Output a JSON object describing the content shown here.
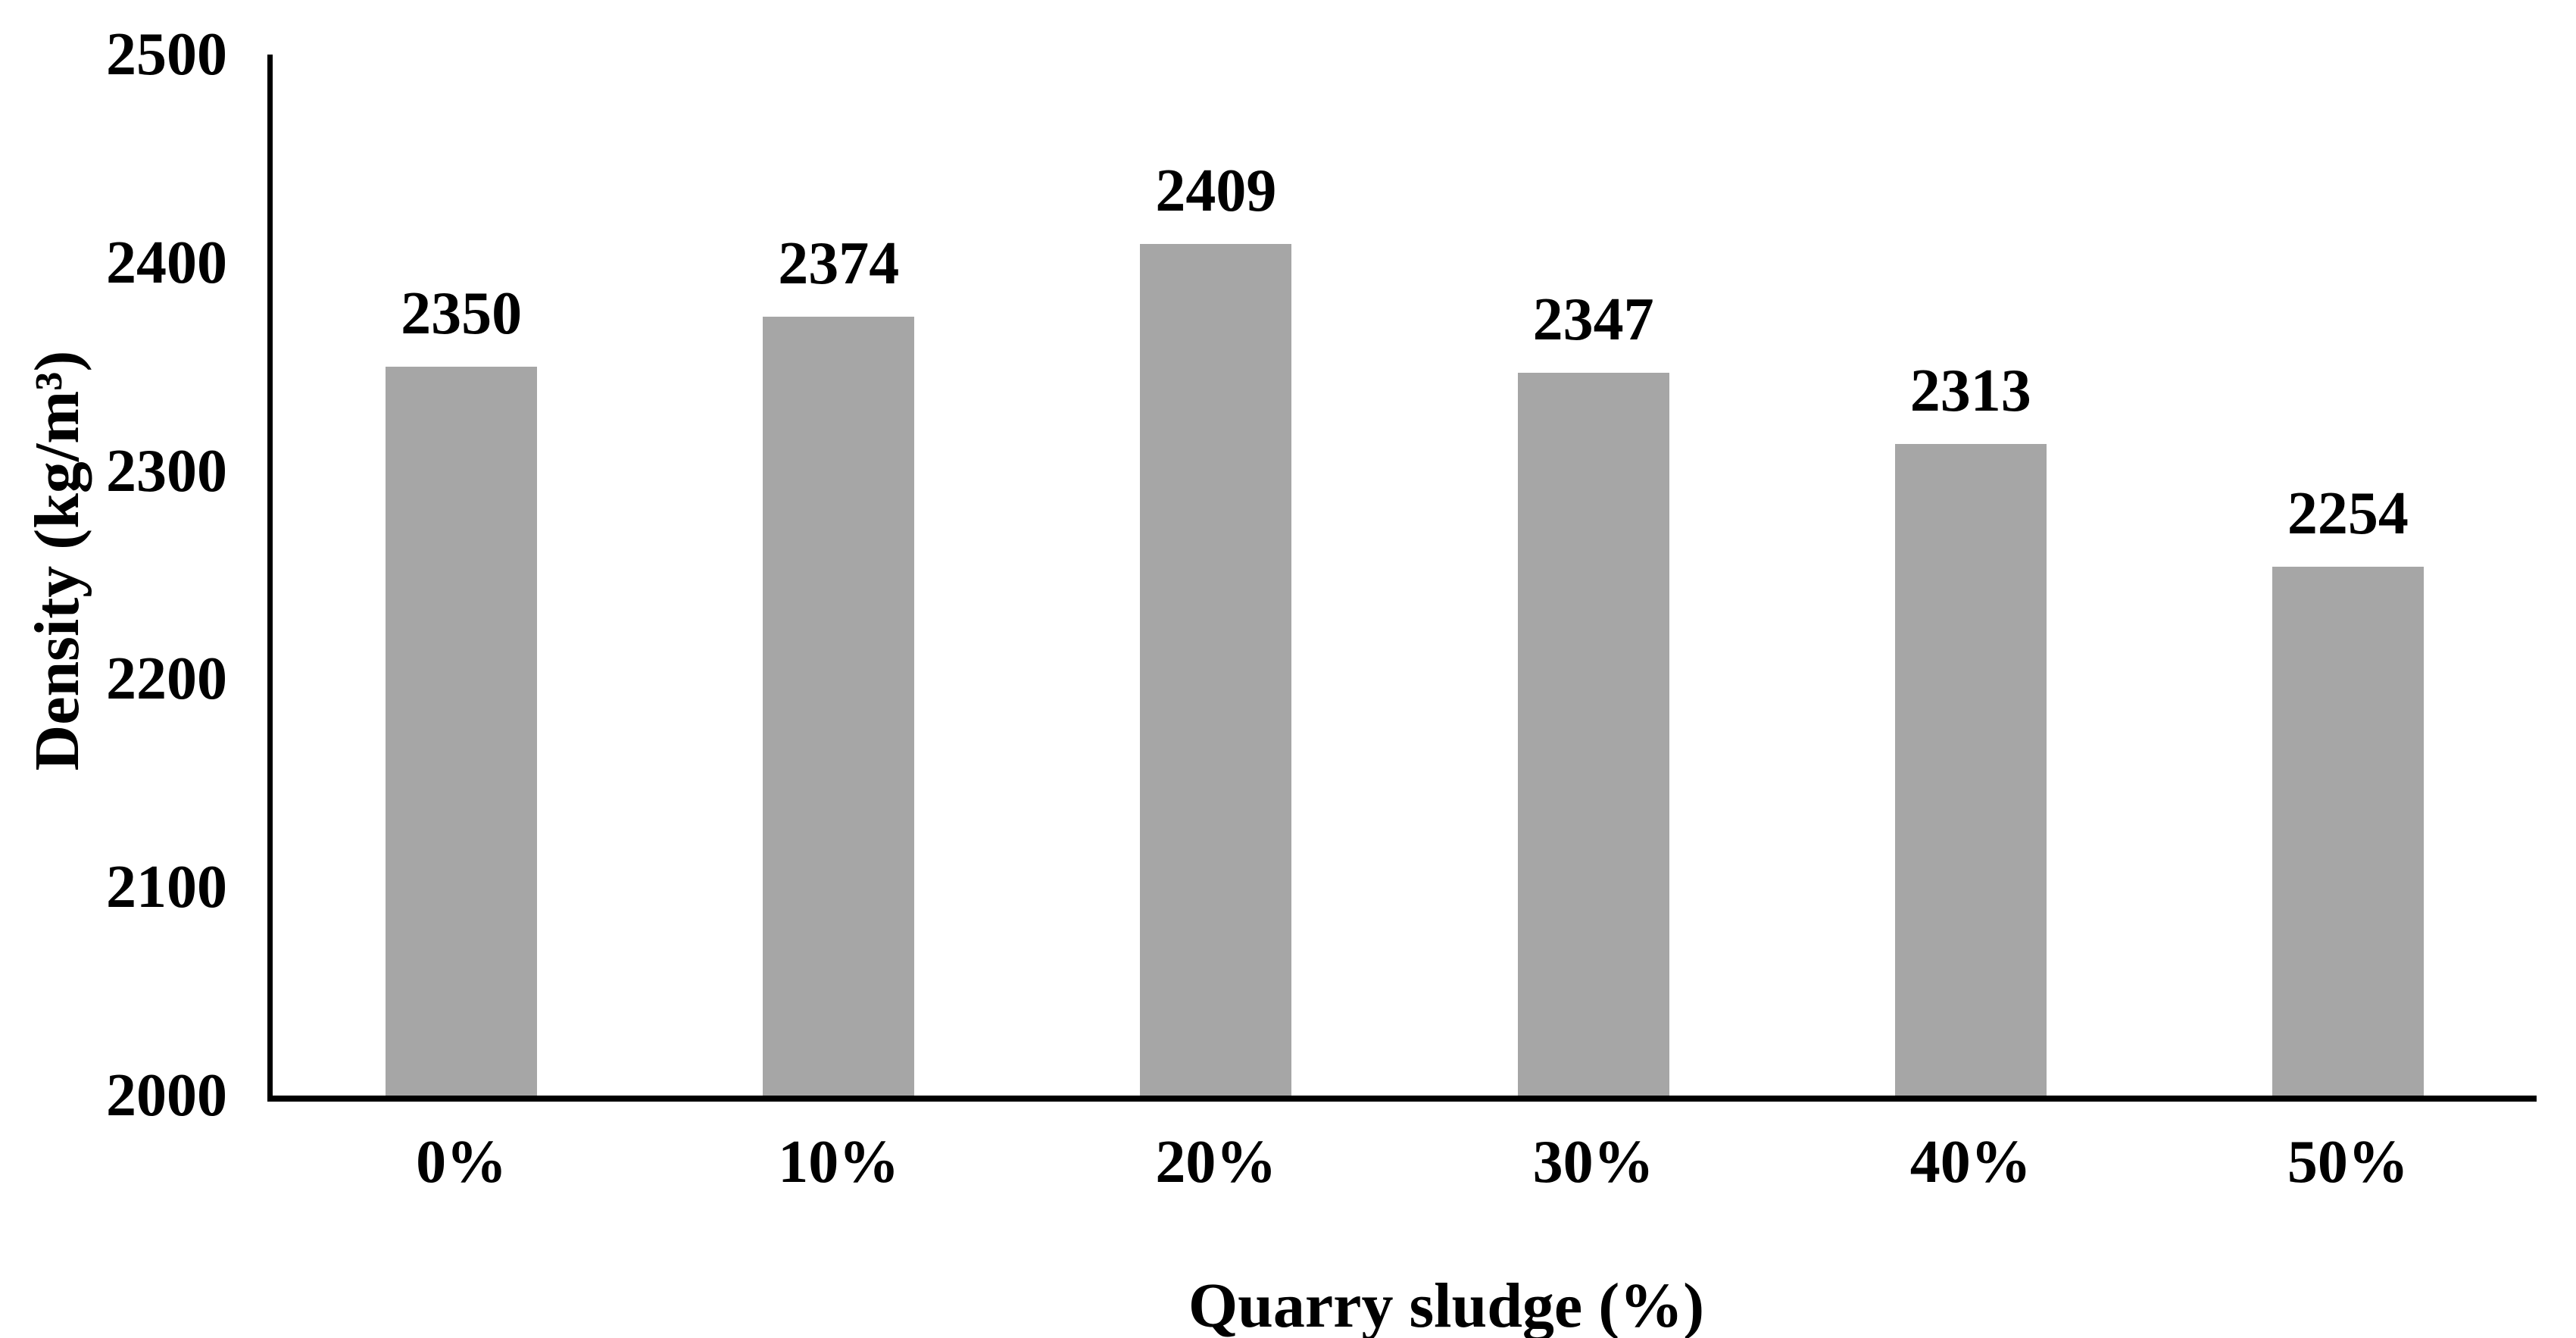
{
  "figure": {
    "background": "#ffffff"
  },
  "chart_data": {
    "type": "bar",
    "categories": [
      "0%",
      "10%",
      "20%",
      "30%",
      "40%",
      "50%"
    ],
    "values": [
      2350,
      2374,
      2409,
      2347,
      2313,
      2254
    ],
    "data_labels": [
      "2350",
      "2374",
      "2409",
      "2347",
      "2313",
      "2254"
    ],
    "title": "",
    "xlabel": "Quarry sludge (%)",
    "ylabel": "Density (kg/m³)",
    "ylim": [
      2000,
      2500
    ],
    "yticks": [
      2000,
      2100,
      2200,
      2300,
      2400,
      2500
    ],
    "ytick_labels": [
      "2000",
      "2100",
      "2200",
      "2300",
      "2400",
      "2500"
    ],
    "grid": false,
    "legend": false,
    "bar_color": "#a6a6a6",
    "axis_color": "#000000",
    "text_color": "#000000"
  }
}
